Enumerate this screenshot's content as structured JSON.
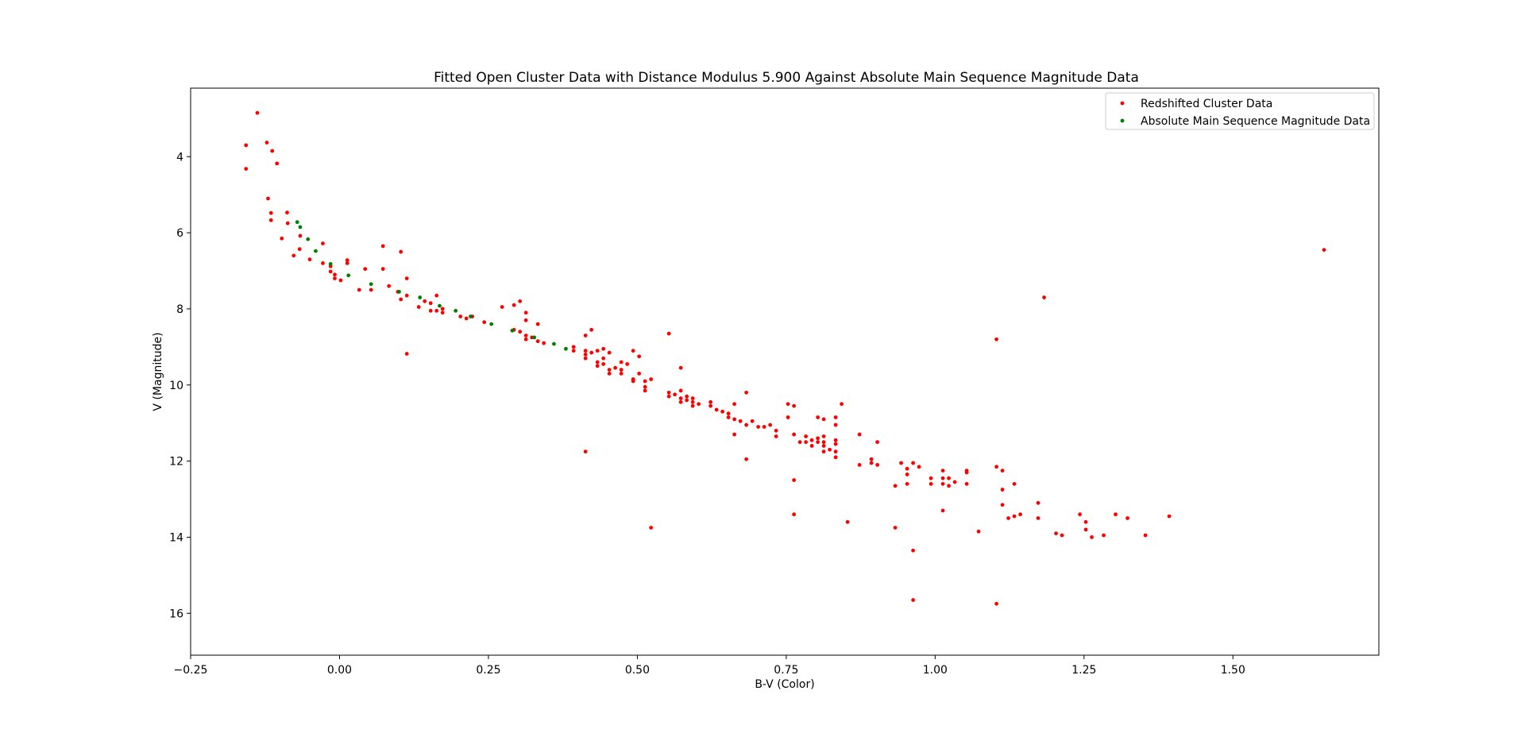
{
  "chart_data": {
    "type": "scatter",
    "title": "Fitted Open Cluster Data with Distance Modulus 5.900 Against Absolute Main Sequence Magnitude Data",
    "xlabel": "B-V (Color)",
    "ylabel": "V (Magnitude)",
    "xlim": [
      -0.25,
      1.745
    ],
    "ylim": [
      17.1,
      2.2
    ],
    "y_inverted": true,
    "grid": false,
    "legend_position": "top-right",
    "xticks": [
      -0.25,
      0.0,
      0.25,
      0.5,
      0.75,
      1.0,
      1.25,
      1.5
    ],
    "xtick_labels": [
      "−0.25",
      "0.00",
      "0.25",
      "0.50",
      "0.75",
      "1.00",
      "1.25",
      "1.50"
    ],
    "yticks": [
      4,
      6,
      8,
      10,
      12,
      14,
      16
    ],
    "ytick_labels": [
      "4",
      "6",
      "8",
      "10",
      "12",
      "14",
      "16"
    ],
    "series": [
      {
        "name": "Redshifted Cluster Data",
        "color": "#ff0000",
        "points": [
          [
            -0.138,
            2.85
          ],
          [
            -0.157,
            3.7
          ],
          [
            -0.122,
            3.63
          ],
          [
            -0.113,
            3.85
          ],
          [
            -0.105,
            4.18
          ],
          [
            -0.157,
            4.32
          ],
          [
            -0.12,
            5.1
          ],
          [
            -0.115,
            5.48
          ],
          [
            -0.115,
            5.67
          ],
          [
            -0.088,
            5.47
          ],
          [
            -0.087,
            5.75
          ],
          [
            -0.097,
            6.15
          ],
          [
            -0.066,
            6.08
          ],
          [
            -0.067,
            6.43
          ],
          [
            -0.077,
            6.6
          ],
          [
            -0.05,
            6.7
          ],
          [
            -0.028,
            6.28
          ],
          [
            -0.028,
            6.8
          ],
          [
            -0.015,
            6.88
          ],
          [
            -0.015,
            7.02
          ],
          [
            -0.008,
            7.1
          ],
          [
            -0.008,
            7.2
          ],
          [
            0.002,
            7.25
          ],
          [
            0.013,
            6.72
          ],
          [
            0.013,
            6.8
          ],
          [
            0.033,
            7.5
          ],
          [
            0.043,
            6.95
          ],
          [
            0.053,
            7.5
          ],
          [
            0.073,
            6.35
          ],
          [
            0.073,
            6.95
          ],
          [
            0.083,
            7.4
          ],
          [
            0.103,
            6.5
          ],
          [
            0.098,
            7.55
          ],
          [
            0.103,
            7.75
          ],
          [
            0.113,
            7.2
          ],
          [
            0.113,
            7.65
          ],
          [
            0.113,
            9.18
          ],
          [
            0.133,
            7.95
          ],
          [
            0.143,
            7.8
          ],
          [
            0.153,
            7.85
          ],
          [
            0.153,
            8.05
          ],
          [
            0.163,
            7.65
          ],
          [
            0.163,
            8.05
          ],
          [
            0.173,
            8.0
          ],
          [
            0.173,
            8.1
          ],
          [
            0.203,
            8.2
          ],
          [
            0.213,
            8.25
          ],
          [
            0.223,
            8.2
          ],
          [
            0.243,
            8.35
          ],
          [
            0.273,
            7.95
          ],
          [
            0.293,
            7.9
          ],
          [
            0.303,
            7.8
          ],
          [
            0.313,
            8.1
          ],
          [
            0.313,
            8.3
          ],
          [
            0.293,
            8.55
          ],
          [
            0.303,
            8.6
          ],
          [
            0.313,
            8.7
          ],
          [
            0.313,
            8.8
          ],
          [
            0.323,
            8.75
          ],
          [
            0.333,
            8.4
          ],
          [
            0.333,
            8.85
          ],
          [
            0.343,
            8.9
          ],
          [
            0.393,
            9.0
          ],
          [
            0.393,
            9.1
          ],
          [
            0.413,
            8.7
          ],
          [
            0.423,
            8.55
          ],
          [
            0.413,
            9.1
          ],
          [
            0.413,
            9.2
          ],
          [
            0.413,
            9.3
          ],
          [
            0.423,
            9.15
          ],
          [
            0.433,
            9.1
          ],
          [
            0.433,
            9.4
          ],
          [
            0.433,
            9.5
          ],
          [
            0.443,
            9.05
          ],
          [
            0.443,
            9.3
          ],
          [
            0.443,
            9.45
          ],
          [
            0.453,
            9.15
          ],
          [
            0.453,
            9.6
          ],
          [
            0.453,
            9.7
          ],
          [
            0.463,
            9.55
          ],
          [
            0.473,
            9.4
          ],
          [
            0.473,
            9.6
          ],
          [
            0.473,
            9.7
          ],
          [
            0.483,
            9.45
          ],
          [
            0.493,
            9.1
          ],
          [
            0.493,
            9.85
          ],
          [
            0.493,
            9.9
          ],
          [
            0.503,
            9.25
          ],
          [
            0.503,
            9.7
          ],
          [
            0.513,
            9.9
          ],
          [
            0.513,
            10.05
          ],
          [
            0.513,
            10.15
          ],
          [
            0.523,
            9.85
          ],
          [
            0.413,
            11.75
          ],
          [
            0.523,
            13.75
          ],
          [
            0.553,
            8.65
          ],
          [
            0.553,
            10.2
          ],
          [
            0.553,
            10.3
          ],
          [
            0.563,
            10.25
          ],
          [
            0.573,
            9.55
          ],
          [
            0.573,
            10.15
          ],
          [
            0.573,
            10.35
          ],
          [
            0.573,
            10.45
          ],
          [
            0.583,
            10.3
          ],
          [
            0.583,
            10.4
          ],
          [
            0.593,
            10.35
          ],
          [
            0.593,
            10.45
          ],
          [
            0.593,
            10.55
          ],
          [
            0.603,
            10.5
          ],
          [
            0.623,
            10.45
          ],
          [
            0.623,
            10.55
          ],
          [
            0.633,
            10.65
          ],
          [
            0.643,
            10.7
          ],
          [
            0.653,
            10.75
          ],
          [
            0.653,
            10.85
          ],
          [
            0.663,
            10.5
          ],
          [
            0.663,
            10.9
          ],
          [
            0.663,
            11.3
          ],
          [
            0.673,
            10.95
          ],
          [
            0.683,
            10.2
          ],
          [
            0.683,
            11.05
          ],
          [
            0.683,
            11.95
          ],
          [
            0.693,
            10.95
          ],
          [
            0.703,
            11.1
          ],
          [
            0.713,
            11.1
          ],
          [
            0.723,
            11.05
          ],
          [
            0.733,
            11.2
          ],
          [
            0.733,
            11.35
          ],
          [
            0.753,
            10.5
          ],
          [
            0.753,
            10.85
          ],
          [
            0.763,
            10.55
          ],
          [
            0.763,
            11.3
          ],
          [
            0.763,
            12.5
          ],
          [
            0.763,
            13.4
          ],
          [
            0.773,
            11.5
          ],
          [
            0.783,
            11.35
          ],
          [
            0.783,
            11.5
          ],
          [
            0.793,
            11.45
          ],
          [
            0.793,
            11.6
          ],
          [
            0.803,
            11.4
          ],
          [
            0.803,
            11.5
          ],
          [
            0.803,
            10.85
          ],
          [
            0.813,
            10.9
          ],
          [
            0.813,
            11.35
          ],
          [
            0.813,
            11.5
          ],
          [
            0.813,
            11.6
          ],
          [
            0.813,
            11.75
          ],
          [
            0.823,
            11.7
          ],
          [
            0.833,
            10.85
          ],
          [
            0.833,
            11.05
          ],
          [
            0.833,
            11.45
          ],
          [
            0.833,
            11.55
          ],
          [
            0.833,
            11.75
          ],
          [
            0.833,
            11.9
          ],
          [
            0.843,
            10.5
          ],
          [
            0.853,
            13.6
          ],
          [
            0.873,
            11.3
          ],
          [
            0.873,
            12.1
          ],
          [
            0.893,
            11.95
          ],
          [
            0.893,
            12.05
          ],
          [
            0.903,
            11.5
          ],
          [
            0.903,
            12.1
          ],
          [
            0.933,
            12.65
          ],
          [
            0.933,
            13.75
          ],
          [
            0.943,
            12.05
          ],
          [
            0.953,
            12.2
          ],
          [
            0.953,
            12.35
          ],
          [
            0.953,
            12.6
          ],
          [
            0.963,
            12.05
          ],
          [
            0.963,
            14.35
          ],
          [
            0.963,
            15.65
          ],
          [
            0.973,
            12.15
          ],
          [
            0.993,
            12.45
          ],
          [
            0.993,
            12.6
          ],
          [
            1.013,
            12.25
          ],
          [
            1.013,
            12.45
          ],
          [
            1.013,
            12.6
          ],
          [
            1.013,
            13.3
          ],
          [
            1.023,
            12.45
          ],
          [
            1.023,
            12.65
          ],
          [
            1.033,
            12.55
          ],
          [
            1.053,
            12.25
          ],
          [
            1.053,
            12.3
          ],
          [
            1.053,
            12.6
          ],
          [
            1.073,
            13.85
          ],
          [
            1.103,
            8.8
          ],
          [
            1.103,
            12.15
          ],
          [
            1.103,
            15.75
          ],
          [
            1.113,
            12.25
          ],
          [
            1.113,
            12.75
          ],
          [
            1.113,
            13.15
          ],
          [
            1.123,
            13.5
          ],
          [
            1.133,
            12.6
          ],
          [
            1.133,
            13.45
          ],
          [
            1.143,
            13.4
          ],
          [
            1.173,
            13.1
          ],
          [
            1.173,
            13.5
          ],
          [
            1.183,
            7.7
          ],
          [
            1.203,
            13.9
          ],
          [
            1.213,
            13.95
          ],
          [
            1.243,
            13.4
          ],
          [
            1.253,
            13.6
          ],
          [
            1.253,
            13.8
          ],
          [
            1.263,
            14.0
          ],
          [
            1.283,
            13.95
          ],
          [
            1.303,
            13.4
          ],
          [
            1.323,
            13.5
          ],
          [
            1.353,
            13.95
          ],
          [
            1.393,
            13.45
          ],
          [
            1.653,
            6.45
          ]
        ]
      },
      {
        "name": "Absolute Main Sequence Magnitude Data",
        "color": "#008000",
        "points": [
          [
            -0.071,
            5.72
          ],
          [
            -0.066,
            5.85
          ],
          [
            -0.053,
            6.17
          ],
          [
            -0.04,
            6.48
          ],
          [
            -0.015,
            6.82
          ],
          [
            0.015,
            7.12
          ],
          [
            0.053,
            7.35
          ],
          [
            0.1,
            7.55
          ],
          [
            0.135,
            7.7
          ],
          [
            0.168,
            7.92
          ],
          [
            0.195,
            8.05
          ],
          [
            0.22,
            8.2
          ],
          [
            0.255,
            8.4
          ],
          [
            0.29,
            8.57
          ],
          [
            0.327,
            8.75
          ],
          [
            0.36,
            8.92
          ],
          [
            0.38,
            9.05
          ]
        ]
      }
    ]
  }
}
